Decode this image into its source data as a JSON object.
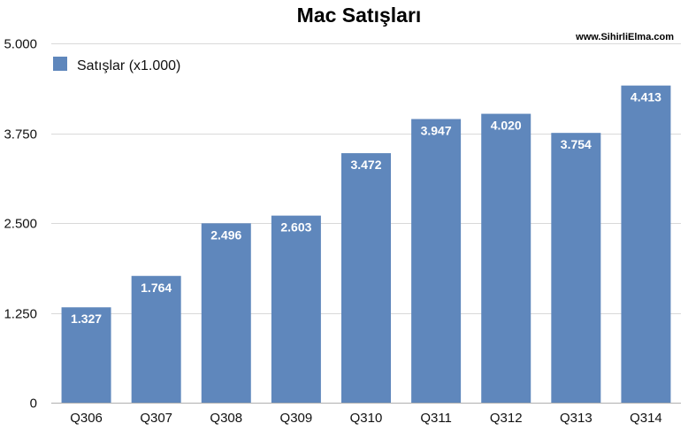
{
  "chart_data": {
    "type": "bar",
    "title": "Mac Satışları",
    "source_text": "www.SihirliElma.com",
    "categories": [
      "Q306",
      "Q307",
      "Q308",
      "Q309",
      "Q310",
      "Q311",
      "Q312",
      "Q313",
      "Q314"
    ],
    "series": [
      {
        "name": "Satışlar (x1.000)",
        "color": "#5f87bc",
        "values": [
          1327,
          1764,
          2496,
          2603,
          3472,
          3947,
          4020,
          3754,
          4413
        ],
        "labels": [
          "1.327",
          "1.764",
          "2.496",
          "2.603",
          "3.472",
          "3.947",
          "4.020",
          "3.754",
          "4.413"
        ]
      }
    ],
    "ylim": [
      0,
      5000
    ],
    "yticks": [
      0,
      1250,
      2500,
      3750,
      5000
    ],
    "ytick_labels": [
      "0",
      "1.250",
      "2.500",
      "3.750",
      "5.000"
    ],
    "grid": true,
    "legend_position": "top-left"
  }
}
